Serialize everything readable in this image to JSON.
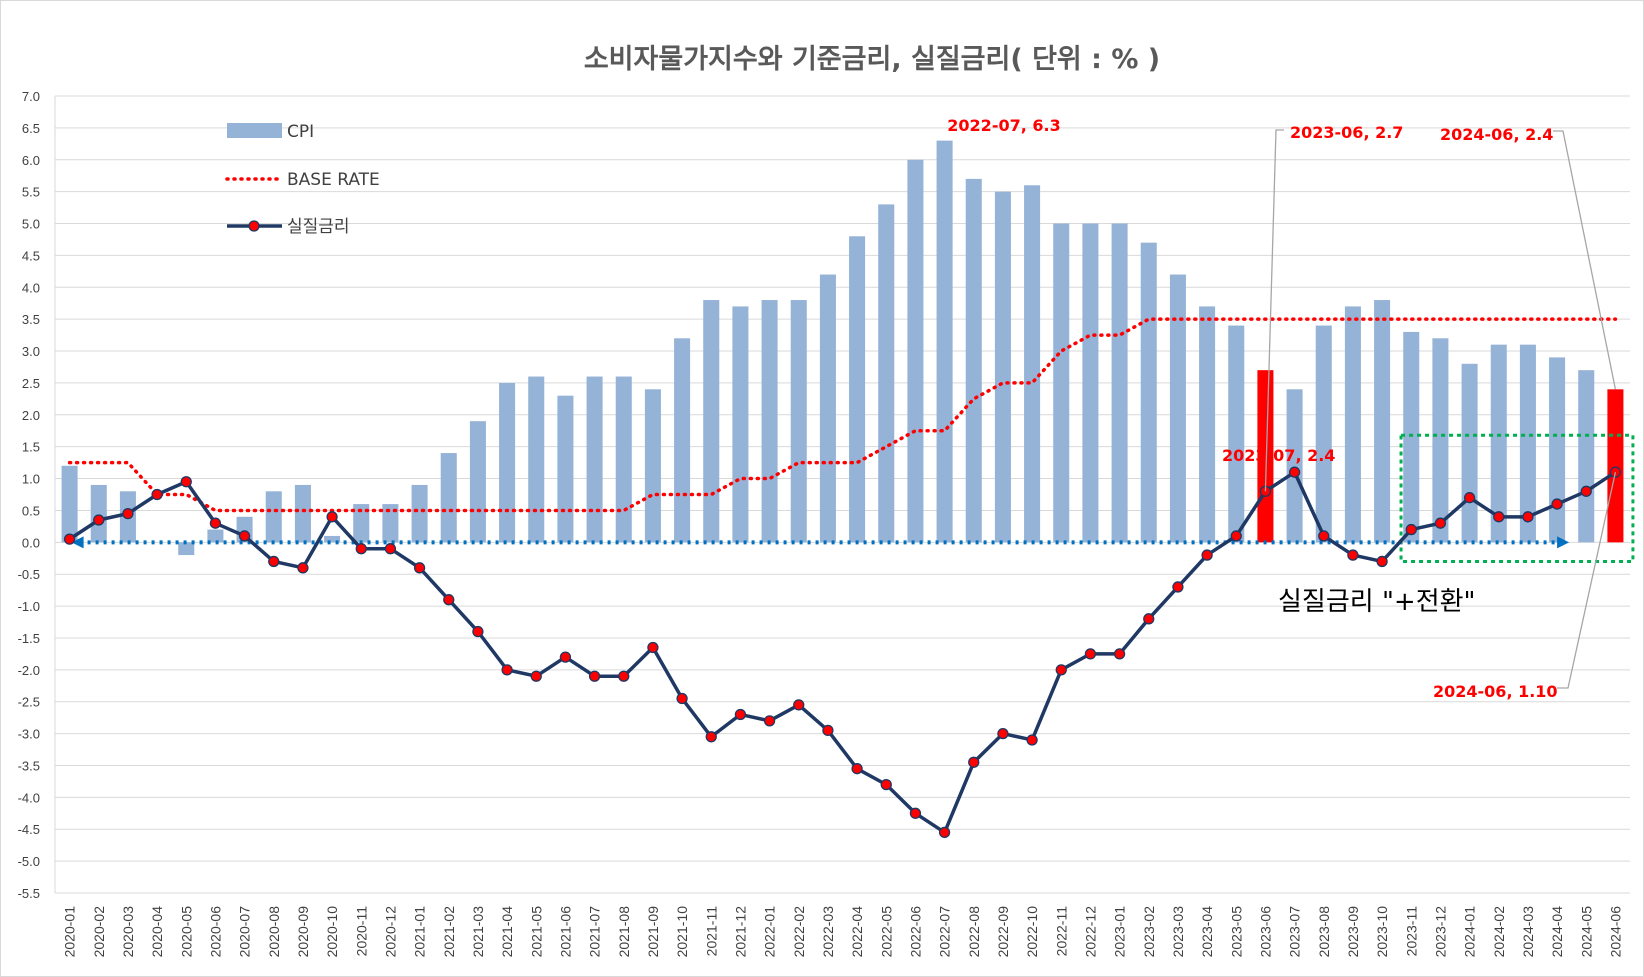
{
  "chart_data": {
    "type": "bar",
    "title": "소비자물가지수와 기준금리, 실질금리( 단위 : % )",
    "xlabel": "",
    "ylabel": "",
    "ylim": [
      -5.5,
      7.0
    ],
    "ytick_step": 0.5,
    "grid": true,
    "legend_position": "top-left",
    "categories": [
      "2020-01",
      "2020-02",
      "2020-03",
      "2020-04",
      "2020-05",
      "2020-06",
      "2020-07",
      "2020-08",
      "2020-09",
      "2020-10",
      "2020-11",
      "2020-12",
      "2021-01",
      "2021-02",
      "2021-03",
      "2021-04",
      "2021-05",
      "2021-06",
      "2021-07",
      "2021-08",
      "2021-09",
      "2021-10",
      "2021-11",
      "2021-12",
      "2022-01",
      "2022-02",
      "2022-03",
      "2022-04",
      "2022-05",
      "2022-06",
      "2022-07",
      "2022-08",
      "2022-09",
      "2022-10",
      "2022-11",
      "2022-12",
      "2023-01",
      "2023-02",
      "2023-03",
      "2023-04",
      "2023-05",
      "2023-06",
      "2023-07",
      "2023-08",
      "2023-09",
      "2023-10",
      "2023-11",
      "2023-12",
      "2024-01",
      "2024-02",
      "2024-03",
      "2024-04",
      "2024-05",
      "2024-06"
    ],
    "series": [
      {
        "name": "CPI",
        "kind": "bar",
        "color": "#95b3d7",
        "highlight_color": "#ff0000",
        "highlight_categories": [
          "2023-06",
          "2024-06"
        ],
        "values": [
          1.2,
          0.9,
          0.8,
          0.0,
          -0.2,
          0.2,
          0.4,
          0.8,
          0.9,
          0.1,
          0.6,
          0.6,
          0.9,
          1.4,
          1.9,
          2.5,
          2.6,
          2.3,
          2.6,
          2.6,
          2.4,
          3.2,
          3.8,
          3.7,
          3.8,
          3.8,
          4.2,
          4.8,
          5.3,
          6.0,
          6.3,
          5.7,
          5.5,
          5.6,
          5.0,
          5.0,
          5.0,
          4.7,
          4.2,
          3.7,
          3.4,
          2.7,
          2.4,
          3.4,
          3.7,
          3.8,
          3.3,
          3.2,
          2.8,
          3.1,
          3.1,
          2.9,
          2.7,
          2.4
        ]
      },
      {
        "name": "BASE RATE",
        "kind": "line-dotted",
        "color": "#ff0000",
        "values": [
          1.25,
          1.25,
          1.25,
          0.75,
          0.75,
          0.5,
          0.5,
          0.5,
          0.5,
          0.5,
          0.5,
          0.5,
          0.5,
          0.5,
          0.5,
          0.5,
          0.5,
          0.5,
          0.5,
          0.5,
          0.75,
          0.75,
          0.75,
          1.0,
          1.0,
          1.25,
          1.25,
          1.25,
          1.5,
          1.75,
          1.75,
          2.25,
          2.5,
          2.5,
          3.0,
          3.25,
          3.25,
          3.5,
          3.5,
          3.5,
          3.5,
          3.5,
          3.5,
          3.5,
          3.5,
          3.5,
          3.5,
          3.5,
          3.5,
          3.5,
          3.5,
          3.5,
          3.5,
          3.5
        ]
      },
      {
        "name": "실질금리",
        "kind": "line-marker",
        "color": "#1f3864",
        "marker_color": "#ff0000",
        "values": [
          0.05,
          0.35,
          0.45,
          0.75,
          0.95,
          0.3,
          0.1,
          -0.3,
          -0.4,
          0.4,
          -0.1,
          -0.1,
          -0.4,
          -0.9,
          -1.4,
          -2.0,
          -2.1,
          -1.8,
          -2.1,
          -2.1,
          -1.65,
          -2.45,
          -3.05,
          -2.7,
          -2.8,
          -2.55,
          -2.95,
          -3.55,
          -3.8,
          -4.25,
          -4.55,
          -3.45,
          -3.0,
          -3.1,
          -2.0,
          -1.75,
          -1.75,
          -1.2,
          -0.7,
          -0.2,
          0.1,
          0.8,
          1.1,
          0.1,
          -0.2,
          -0.3,
          0.2,
          0.3,
          0.7,
          0.4,
          0.4,
          0.6,
          0.8,
          1.1
        ]
      }
    ],
    "annotations": [
      {
        "text": "2022-07, 6.3",
        "color": "#ff0000"
      },
      {
        "text": "2023-06, 2.7",
        "color": "#ff0000"
      },
      {
        "text": "2024-06, 2.4",
        "color": "#ff0000"
      },
      {
        "text": "2023-07, 2.4",
        "color": "#ff0000"
      },
      {
        "text": "2024-06, 1.10",
        "color": "#ff0000"
      },
      {
        "text": "실질금리 \"+전환\"",
        "color": "#000000"
      }
    ],
    "zero_arrow_color": "#0070c0",
    "highlight_box_color": "#00b050"
  }
}
